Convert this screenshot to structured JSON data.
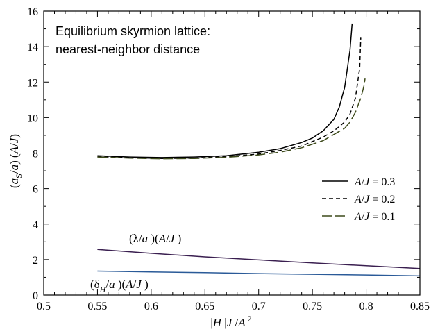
{
  "chart_data": {
    "type": "line",
    "title_lines": [
      "Equilibrium skyrmion lattice:",
      "nearest-neighbor distance"
    ],
    "xlabel": "|H| J / A²",
    "ylabel": "(a_S / a) (A/J)",
    "xlim": [
      0.5,
      0.85
    ],
    "ylim": [
      0,
      16
    ],
    "xticks": [
      "0.5",
      "0.55",
      "0.6",
      "0.65",
      "0.7",
      "0.75",
      "0.8",
      "0.85"
    ],
    "yticks": [
      "0",
      "2",
      "4",
      "6",
      "8",
      "10",
      "12",
      "14",
      "16"
    ],
    "legend_position": "right",
    "series": [
      {
        "name": "A/J = 0.3",
        "color": "#000000",
        "style": "solid",
        "x": [
          0.55,
          0.58,
          0.61,
          0.64,
          0.67,
          0.7,
          0.72,
          0.74,
          0.75,
          0.76,
          0.77,
          0.775,
          0.78,
          0.785,
          0.787
        ],
        "y": [
          7.85,
          7.78,
          7.75,
          7.78,
          7.85,
          8.05,
          8.25,
          8.6,
          8.85,
          9.25,
          9.9,
          10.6,
          11.7,
          13.8,
          15.3
        ]
      },
      {
        "name": "A/J = 0.2",
        "color": "#000000",
        "style": "dashed",
        "x": [
          0.55,
          0.58,
          0.61,
          0.64,
          0.67,
          0.7,
          0.72,
          0.74,
          0.76,
          0.77,
          0.78,
          0.785,
          0.79,
          0.794,
          0.795
        ],
        "y": [
          7.8,
          7.74,
          7.7,
          7.72,
          7.8,
          7.95,
          8.15,
          8.4,
          8.9,
          9.25,
          9.75,
          10.2,
          11.1,
          12.8,
          14.5
        ]
      },
      {
        "name": "A/J = 0.1",
        "color": "#3d4a1a",
        "style": "longdash",
        "x": [
          0.55,
          0.58,
          0.61,
          0.64,
          0.67,
          0.7,
          0.72,
          0.74,
          0.76,
          0.78,
          0.785,
          0.79,
          0.795,
          0.798,
          0.799
        ],
        "y": [
          7.78,
          7.72,
          7.68,
          7.7,
          7.76,
          7.9,
          8.05,
          8.3,
          8.7,
          9.4,
          9.75,
          10.3,
          11.1,
          11.8,
          12.2
        ]
      }
    ],
    "lower_curves": [
      {
        "label": "(λ/a)(A/J)",
        "color": "#3a1f50",
        "x": [
          0.55,
          0.6,
          0.65,
          0.7,
          0.75,
          0.8,
          0.85
        ],
        "y": [
          2.57,
          2.35,
          2.15,
          1.98,
          1.81,
          1.65,
          1.5
        ]
      },
      {
        "label": "(δ_H/a)(A/J)",
        "color": "#2a5a98",
        "x": [
          0.55,
          0.6,
          0.65,
          0.7,
          0.75,
          0.8,
          0.85
        ],
        "y": [
          1.35,
          1.3,
          1.26,
          1.21,
          1.17,
          1.13,
          1.08
        ]
      }
    ]
  }
}
